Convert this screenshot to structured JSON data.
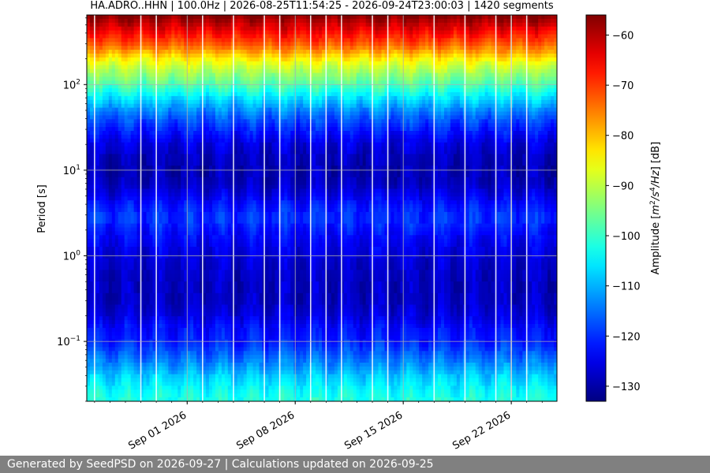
{
  "chart_data": {
    "type": "heatmap",
    "title": "HA.ADRO..HHN | 100.0Hz | 2026-08-25T11:54:25 - 2026-09-24T23:00:03 | 1420 segments",
    "xlabel": "",
    "ylabel": "Period [s]",
    "x_range": [
      "2026-08-25T11:54:25",
      "2026-09-24T23:00:03"
    ],
    "x_ticks": [
      {
        "value": "2026-09-01",
        "label": "Sep 01 2026"
      },
      {
        "value": "2026-09-08",
        "label": "Sep 08 2026"
      },
      {
        "value": "2026-09-15",
        "label": "Sep 15 2026"
      },
      {
        "value": "2026-09-22",
        "label": "Sep 22 2026"
      }
    ],
    "y_scale": "log",
    "y_inverted": true,
    "ylim": [
      0.02,
      650
    ],
    "y_ticks": [
      {
        "value": 0.1,
        "base": "10",
        "exp": "−1"
      },
      {
        "value": 1,
        "base": "10",
        "exp": "0"
      },
      {
        "value": 10,
        "base": "10",
        "exp": "1"
      },
      {
        "value": 100,
        "base": "10",
        "exp": "2"
      }
    ],
    "colorbar": {
      "label": "Amplitude [m²/s⁴/Hz] [dB]",
      "label_parts": {
        "a": "Amplitude [",
        "m": "m",
        "e1": "2",
        "s": "/s",
        "e2": "4",
        "hz": "/Hz",
        "b": "] [dB]"
      },
      "range": [
        -133,
        -56
      ],
      "colormap": "jet",
      "ticks": [
        "−60",
        "−70",
        "−80",
        "−90",
        "−100",
        "−110",
        "−120",
        "−130"
      ],
      "tick_values": [
        -60,
        -70,
        -80,
        -90,
        -100,
        -110,
        -120,
        -130
      ]
    },
    "profile": {
      "periods": [
        0.02,
        0.025,
        0.03,
        0.04,
        0.06,
        0.08,
        0.1,
        0.15,
        0.2,
        0.3,
        0.5,
        0.8,
        1,
        1.5,
        2,
        2.5,
        3,
        4,
        5,
        7,
        10,
        15,
        20,
        30,
        40,
        50,
        60,
        70,
        80,
        100,
        130,
        160,
        200,
        250,
        300,
        400,
        650
      ],
      "amplitudes_db": [
        -102,
        -103,
        -105,
        -108,
        -114,
        -118,
        -121,
        -123,
        -126,
        -128,
        -128,
        -127,
        -126,
        -124,
        -122,
        -120,
        -120,
        -122,
        -125,
        -128,
        -129,
        -128,
        -126,
        -121,
        -117,
        -113,
        -109,
        -106,
        -103,
        -98,
        -93,
        -89,
        -84,
        -77,
        -72,
        -66,
        -56
      ]
    },
    "gap_dates": [
      "2026-08-26",
      "2026-08-29",
      "2026-08-30",
      "2026-09-02",
      "2026-09-04",
      "2026-09-06",
      "2026-09-07",
      "2026-09-09",
      "2026-09-10",
      "2026-09-11",
      "2026-09-13",
      "2026-09-14",
      "2026-09-17",
      "2026-09-19",
      "2026-09-21",
      "2026-09-22",
      "2026-09-23"
    ],
    "grid": true
  },
  "footer": {
    "text": "Generated by SeedPSD on 2026-09-27 | Calculations updated on 2026-09-25"
  },
  "colors": {
    "footer_bg": "#808080",
    "footer_text": "#ffffff",
    "grid": "#b0b0b0"
  }
}
